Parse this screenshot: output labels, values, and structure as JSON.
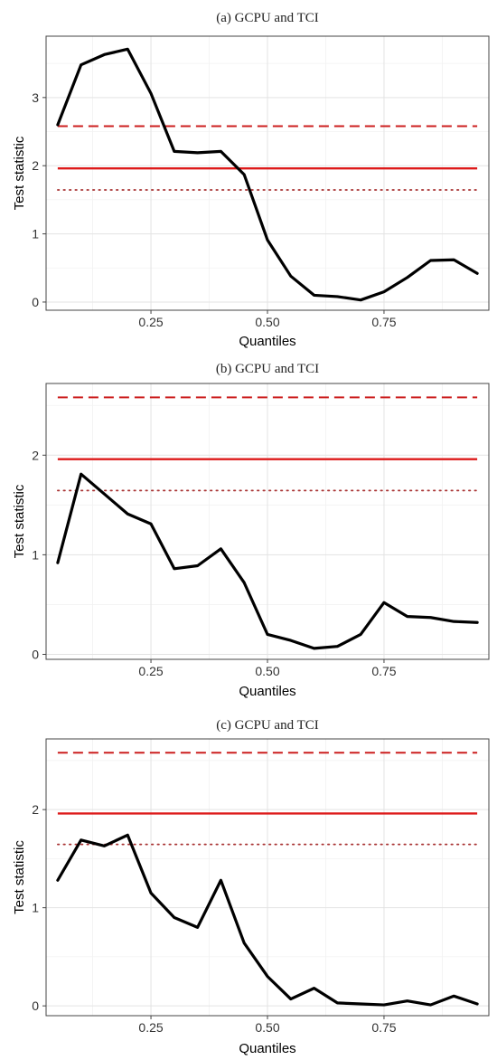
{
  "chart_data": [
    {
      "type": "line",
      "title": "(a) GCPU and TCI",
      "xlabel": "Quantiles",
      "ylabel": "Test statistic",
      "xlim": [
        0.025,
        0.975
      ],
      "ylim": [
        -0.12,
        3.9
      ],
      "xticks": [
        0.25,
        0.5,
        0.75
      ],
      "xtick_labels": [
        "0.25",
        "0.50",
        "0.75"
      ],
      "yticks": [
        0,
        1,
        2,
        3
      ],
      "ytick_labels": [
        "0",
        "1",
        "2",
        "3"
      ],
      "grid": true,
      "series": [
        {
          "x": [
            0.05,
            0.1,
            0.15,
            0.2,
            0.25,
            0.3,
            0.35,
            0.4,
            0.45,
            0.5,
            0.55,
            0.6,
            0.65,
            0.7,
            0.75,
            0.8,
            0.85,
            0.9,
            0.95
          ],
          "values": [
            2.6,
            3.48,
            3.63,
            3.71,
            3.06,
            2.21,
            2.19,
            2.21,
            1.87,
            0.91,
            0.38,
            0.1,
            0.08,
            0.03,
            0.15,
            0.36,
            0.61,
            0.62,
            0.42
          ],
          "color": "#000000"
        }
      ],
      "reference_lines": [
        {
          "y": 2.58,
          "style": "dashed",
          "color": "#cc1f1f"
        },
        {
          "y": 1.96,
          "style": "solid",
          "color": "#dd1a1a"
        },
        {
          "y": 1.645,
          "style": "dotted",
          "color": "#a83232"
        }
      ]
    },
    {
      "type": "line",
      "title": "(b) GCPU and TCI",
      "xlabel": "Quantiles",
      "ylabel": "Test statistic",
      "xlim": [
        0.025,
        0.975
      ],
      "ylim": [
        -0.05,
        2.72
      ],
      "xticks": [
        0.25,
        0.5,
        0.75
      ],
      "xtick_labels": [
        "0.25",
        "0.50",
        "0.75"
      ],
      "yticks": [
        0,
        1,
        2
      ],
      "ytick_labels": [
        "0",
        "1",
        "2"
      ],
      "grid": true,
      "series": [
        {
          "x": [
            0.05,
            0.1,
            0.15,
            0.2,
            0.25,
            0.3,
            0.35,
            0.4,
            0.45,
            0.5,
            0.55,
            0.6,
            0.65,
            0.7,
            0.75,
            0.8,
            0.85,
            0.9,
            0.95
          ],
          "values": [
            0.92,
            1.81,
            1.61,
            1.41,
            1.31,
            0.86,
            0.89,
            1.06,
            0.72,
            0.2,
            0.14,
            0.06,
            0.08,
            0.2,
            0.52,
            0.38,
            0.37,
            0.33,
            0.32
          ],
          "color": "#000000"
        }
      ],
      "reference_lines": [
        {
          "y": 2.58,
          "style": "dashed",
          "color": "#cc1f1f"
        },
        {
          "y": 1.96,
          "style": "solid",
          "color": "#dd1a1a"
        },
        {
          "y": 1.645,
          "style": "dotted",
          "color": "#a83232"
        }
      ]
    },
    {
      "type": "line",
      "title": "(c) GCPU and TCI",
      "xlabel": "Quantiles",
      "ylabel": "Test statistic",
      "xlim": [
        0.025,
        0.975
      ],
      "ylim": [
        -0.1,
        2.72
      ],
      "xticks": [
        0.25,
        0.5,
        0.75
      ],
      "xtick_labels": [
        "0.25",
        "0.50",
        "0.75"
      ],
      "yticks": [
        0,
        1,
        2
      ],
      "ytick_labels": [
        "0",
        "1",
        "2"
      ],
      "grid": true,
      "series": [
        {
          "x": [
            0.05,
            0.1,
            0.15,
            0.2,
            0.25,
            0.3,
            0.35,
            0.4,
            0.45,
            0.5,
            0.55,
            0.6,
            0.65,
            0.7,
            0.75,
            0.8,
            0.85,
            0.9,
            0.95
          ],
          "values": [
            1.28,
            1.69,
            1.63,
            1.74,
            1.15,
            0.9,
            0.8,
            1.28,
            0.64,
            0.3,
            0.07,
            0.18,
            0.03,
            0.02,
            0.01,
            0.05,
            0.01,
            0.1,
            0.02
          ],
          "color": "#000000"
        }
      ],
      "reference_lines": [
        {
          "y": 2.58,
          "style": "dashed",
          "color": "#cc1f1f"
        },
        {
          "y": 1.96,
          "style": "solid",
          "color": "#dd1a1a"
        },
        {
          "y": 1.645,
          "style": "dotted",
          "color": "#a83232"
        }
      ]
    }
  ]
}
